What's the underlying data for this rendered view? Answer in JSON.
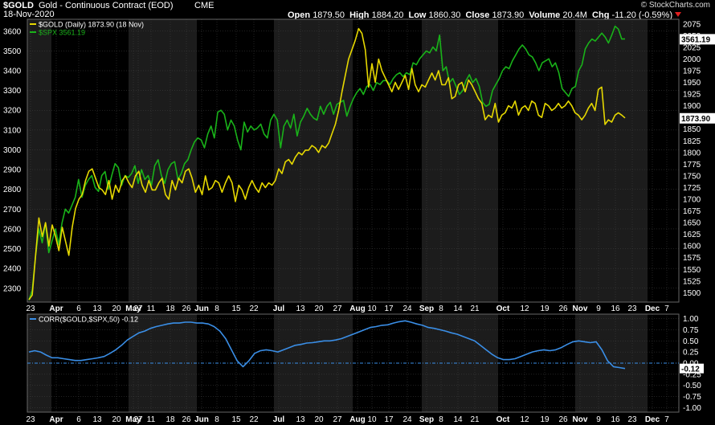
{
  "header": {
    "symbol": "$GOLD",
    "description": "Gold - Continuous Contract (EOD)",
    "exchange": "CME",
    "date": "18-Nov-2020",
    "copyright": "© StockCharts.com",
    "open_label": "Open",
    "open": "1879.50",
    "high_label": "High",
    "high": "1884.20",
    "low_label": "Low",
    "low": "1860.30",
    "close_label": "Close",
    "close": "1873.90",
    "volume_label": "Volume",
    "volume": "20.4M",
    "chg_label": "Chg",
    "chg": "-11.20 (-0.59%)"
  },
  "colors": {
    "background": "#000000",
    "band_dark": "#000000",
    "band_light": "#1c1c1c",
    "grid": "#444444",
    "gold": "#e6d800",
    "spx": "#19b219",
    "corr": "#3a8ee6",
    "zero_line": "#3a8ee6",
    "text": "#ffffff"
  },
  "chart_data": [
    {
      "type": "line",
      "legend": [
        {
          "label": "$GOLD (Daily) 1873.90 (18 Nov)",
          "color": "#e6d800"
        },
        {
          "label": "$SPX 3561.19",
          "color": "#19b219"
        }
      ],
      "legend_position": "top-left",
      "grid": true,
      "x_tick_labels": [
        "23",
        "Apr",
        "6",
        "13",
        "20",
        "27",
        "May",
        "11",
        "18",
        "26",
        "Jun",
        "8",
        "15",
        "22",
        "Jul",
        "13",
        "20",
        "27",
        "Aug",
        "10",
        "17",
        "24",
        "Sep",
        "8",
        "14",
        "21",
        "Oct",
        "12",
        "19",
        "26",
        "Nov",
        "9",
        "16",
        "23",
        "Dec",
        "7"
      ],
      "left_axis": {
        "series": "$SPX",
        "ticks": [
          "2300",
          "2400",
          "2500",
          "2600",
          "2700",
          "2800",
          "2900",
          "3000",
          "3100",
          "3200",
          "3300",
          "3400",
          "3500",
          "3600"
        ],
        "ylim": [
          2230,
          3660
        ]
      },
      "right_axis": {
        "series": "$GOLD",
        "ticks": [
          "1500",
          "1525",
          "1550",
          "1575",
          "1600",
          "1625",
          "1650",
          "1675",
          "1700",
          "1725",
          "1750",
          "1775",
          "1800",
          "1825",
          "1850",
          "1875",
          "1900",
          "1925",
          "1950",
          "1975",
          "2000",
          "2025",
          "2050",
          "2075"
        ],
        "ylim": [
          1480,
          2085
        ]
      },
      "last_value_labels": [
        {
          "series": "$SPX",
          "text": "3561.19"
        },
        {
          "series": "$GOLD",
          "text": "1873.90"
        }
      ],
      "series": [
        {
          "name": "$GOLD",
          "axis": "right",
          "values": [
            1485,
            1495,
            1580,
            1660,
            1620,
            1650,
            1600,
            1645,
            1620,
            1590,
            1640,
            1610,
            1580,
            1640,
            1680,
            1700,
            1710,
            1740,
            1760,
            1765,
            1745,
            1725,
            1720,
            1710,
            1740,
            1700,
            1730,
            1715,
            1740,
            1750,
            1735,
            1725,
            1750,
            1760,
            1730,
            1715,
            1740,
            1720,
            1720,
            1735,
            1745,
            1710,
            1700,
            1740,
            1720,
            1745,
            1735,
            1760,
            1765,
            1745,
            1715,
            1730,
            1710,
            1750,
            1720,
            1725,
            1740,
            1735,
            1715,
            1735,
            1750,
            1735,
            1695,
            1730,
            1720,
            1700,
            1725,
            1740,
            1725,
            1715,
            1735,
            1725,
            1735,
            1730,
            1740,
            1765,
            1755,
            1780,
            1785,
            1775,
            1790,
            1800,
            1795,
            1805,
            1805,
            1815,
            1810,
            1800,
            1815,
            1810,
            1820,
            1840,
            1860,
            1890,
            1930,
            1965,
            2000,
            2020,
            2040,
            2065,
            2055,
            2020,
            1940,
            1990,
            1950,
            2000,
            1975,
            1960,
            1945,
            1930,
            1950,
            1935,
            1950,
            1965,
            1935,
            1980,
            1945,
            1930,
            1945,
            1940,
            1955,
            1970,
            1955,
            1975,
            1945,
            1945,
            1960,
            1915,
            1920,
            1945,
            1950,
            1930,
            1955,
            1945,
            1930,
            1915,
            1905,
            1870,
            1880,
            1875,
            1905,
            1865,
            1880,
            1885,
            1900,
            1895,
            1910,
            1880,
            1895,
            1900,
            1890,
            1910,
            1905,
            1880,
            1875,
            1905,
            1900,
            1890,
            1895,
            1905,
            1895,
            1900,
            1910,
            1900,
            1885,
            1880,
            1870,
            1880,
            1895,
            1905,
            1890,
            1935,
            1940,
            1860,
            1870,
            1865,
            1880,
            1885,
            1880,
            1874
          ]
        },
        {
          "name": "$SPX",
          "axis": "left",
          "values": [
            2240,
            2290,
            2460,
            2600,
            2530,
            2630,
            2480,
            2540,
            2600,
            2520,
            2630,
            2700,
            2680,
            2720,
            2760,
            2850,
            2760,
            2820,
            2850,
            2870,
            2810,
            2790,
            2870,
            2890,
            2800,
            2870,
            2930,
            2910,
            2820,
            2870,
            2860,
            2880,
            2920,
            2830,
            2900,
            2850,
            2870,
            2820,
            2920,
            2950,
            2870,
            2830,
            2900,
            2930,
            2940,
            2850,
            2880,
            2930,
            2950,
            3000,
            3040,
            3060,
            3050,
            3010,
            3080,
            3120,
            3060,
            3190,
            3200,
            3180,
            3100,
            3150,
            3120,
            3050,
            3000,
            3140,
            3090,
            3120,
            3100,
            3110,
            3130,
            3080,
            3060,
            3150,
            3180,
            3150,
            3010,
            3120,
            3150,
            3110,
            3180,
            3070,
            3140,
            3170,
            3210,
            3180,
            3160,
            3150,
            3220,
            3180,
            3220,
            3240,
            3180,
            3230,
            3240,
            3250,
            3170,
            3220,
            3260,
            3290,
            3310,
            3280,
            3320,
            3330,
            3300,
            3340,
            3330,
            3350,
            3350,
            3330,
            3360,
            3380,
            3390,
            3370,
            3390,
            3380,
            3440,
            3430,
            3460,
            3480,
            3500,
            3490,
            3520,
            3500,
            3580,
            3400,
            3420,
            3340,
            3360,
            3320,
            3280,
            3300,
            3350,
            3380,
            3340,
            3360,
            3320,
            3240,
            3220,
            3230,
            3300,
            3330,
            3360,
            3400,
            3420,
            3410,
            3450,
            3480,
            3510,
            3530,
            3510,
            3480,
            3470,
            3440,
            3400,
            3440,
            3450,
            3460,
            3420,
            3440,
            3390,
            3310,
            3290,
            3270,
            3310,
            3320,
            3400,
            3430,
            3510,
            3540,
            3560,
            3550,
            3570,
            3590,
            3570,
            3540,
            3580,
            3625,
            3610,
            3560,
            3561
          ]
        }
      ]
    },
    {
      "type": "line",
      "legend": [
        {
          "label": "CORR($GOLD,$SPX,50) -0.12",
          "color": "#3a8ee6"
        }
      ],
      "legend_position": "top-left",
      "grid": true,
      "reference_line": 0,
      "right_axis": {
        "ticks": [
          "1.00",
          "0.75",
          "0.50",
          "0.25",
          "0.00",
          "-0.25",
          "-0.50",
          "-0.75",
          "-1.00"
        ],
        "ylim": [
          -1.1,
          1.1
        ]
      },
      "last_value_label": "-0.12",
      "x_tick_labels": [
        "23",
        "Apr",
        "6",
        "13",
        "20",
        "27",
        "May",
        "11",
        "18",
        "26",
        "Jun",
        "8",
        "15",
        "22",
        "Jul",
        "13",
        "20",
        "27",
        "Aug",
        "10",
        "17",
        "24",
        "Sep",
        "8",
        "14",
        "21",
        "Oct",
        "12",
        "19",
        "26",
        "Nov",
        "9",
        "16",
        "23",
        "Dec",
        "7"
      ],
      "series": [
        {
          "name": "CORR($GOLD,$SPX,50)",
          "values": [
            0.25,
            0.28,
            0.25,
            0.18,
            0.12,
            0.12,
            0.1,
            0.08,
            0.06,
            0.06,
            0.08,
            0.1,
            0.12,
            0.15,
            0.22,
            0.3,
            0.4,
            0.52,
            0.6,
            0.68,
            0.72,
            0.78,
            0.82,
            0.85,
            0.88,
            0.9,
            0.9,
            0.92,
            0.92,
            0.9,
            0.9,
            0.88,
            0.82,
            0.72,
            0.55,
            0.3,
            0.05,
            -0.08,
            0.05,
            0.22,
            0.28,
            0.3,
            0.28,
            0.25,
            0.3,
            0.35,
            0.4,
            0.42,
            0.45,
            0.46,
            0.48,
            0.5,
            0.5,
            0.52,
            0.55,
            0.6,
            0.65,
            0.7,
            0.75,
            0.8,
            0.82,
            0.85,
            0.86,
            0.9,
            0.93,
            0.95,
            0.92,
            0.88,
            0.85,
            0.8,
            0.78,
            0.75,
            0.72,
            0.68,
            0.65,
            0.6,
            0.55,
            0.5,
            0.4,
            0.3,
            0.2,
            0.12,
            0.08,
            0.08,
            0.1,
            0.15,
            0.2,
            0.25,
            0.28,
            0.3,
            0.28,
            0.3,
            0.35,
            0.42,
            0.48,
            0.5,
            0.48,
            0.46,
            0.48,
            0.3,
            0.05,
            -0.08,
            -0.1,
            -0.12
          ]
        }
      ]
    }
  ]
}
